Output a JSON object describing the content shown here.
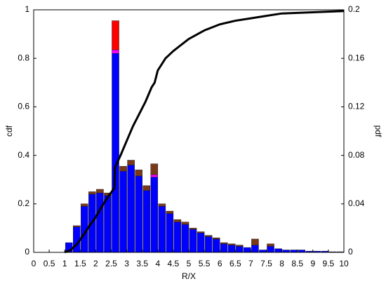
{
  "chart_data": [
    {
      "type": "line",
      "x": [
        1,
        1.2,
        1.4,
        1.6,
        1.8,
        2,
        2.2,
        2.4,
        2.6,
        2.62,
        2.8,
        3,
        3.2,
        3.4,
        3.6,
        3.8,
        3.9,
        4,
        4.25,
        4.5,
        5,
        5.5,
        6,
        6.5,
        7,
        7.5,
        8,
        9,
        10
      ],
      "values": [
        0,
        0.01,
        0.035,
        0.07,
        0.11,
        0.145,
        0.19,
        0.23,
        0.265,
        0.35,
        0.4,
        0.46,
        0.52,
        0.57,
        0.62,
        0.68,
        0.7,
        0.75,
        0.8,
        0.83,
        0.88,
        0.915,
        0.94,
        0.955,
        0.965,
        0.975,
        0.985,
        0.99,
        0.995
      ],
      "color": "#000000",
      "xlabel": "R/X",
      "ylabel": "cdf",
      "xlim": [
        0,
        10
      ],
      "xticks": [
        0,
        0.5,
        1,
        1.5,
        2,
        2.5,
        3,
        3.5,
        4,
        4.5,
        5,
        5.5,
        6,
        6.5,
        7,
        7.5,
        8,
        8.5,
        9,
        9.5,
        10
      ],
      "ylim": [
        0,
        1
      ],
      "yticks": [
        0,
        0.2,
        0.4,
        0.6,
        0.8,
        1
      ]
    },
    {
      "type": "histogram",
      "bins": [
        1,
        1.25,
        1.5,
        1.75,
        2,
        2.25,
        2.5,
        2.75,
        3,
        3.25,
        3.5,
        3.75,
        4,
        4.25,
        4.5,
        4.75,
        5,
        5.25,
        5.5,
        5.75,
        6,
        6.25,
        6.5,
        6.75,
        7,
        7.25,
        7.5,
        7.75,
        8,
        8.25,
        8.5,
        8.75,
        9,
        9.25,
        9.5,
        9.75,
        10
      ],
      "ylabel": "pdf",
      "y2lim": [
        0,
        0.2
      ],
      "y2ticks": [
        0,
        0.04,
        0.08,
        0.12,
        0.16,
        0.2
      ],
      "series": [
        {
          "color": "#0000ff",
          "axis": "y2",
          "values": [
            0.008,
            0.021,
            0.038,
            0.048,
            0.049,
            0.047,
            0.164,
            0.067,
            0.072,
            0.063,
            0.051,
            0.062,
            0.038,
            0.032,
            0.025,
            0.023,
            0.019,
            0.016,
            0.013,
            0.011,
            0.007,
            0.006,
            0.005,
            0.004,
            0.006,
            0.002,
            0.005,
            0.003,
            0.002,
            0.002,
            0.002,
            0.001,
            0.001,
            0.001,
            0.0005,
            0.0005
          ]
        },
        {
          "color": "#ff00ff",
          "axis": "y2",
          "values": [
            0,
            0,
            0,
            0,
            0,
            0,
            0.003,
            0,
            0,
            0,
            0,
            0.002,
            0,
            0,
            0,
            0,
            0,
            0,
            0,
            0,
            0,
            0,
            0,
            0,
            0,
            0,
            0,
            0,
            0,
            0,
            0,
            0,
            0,
            0,
            0,
            0
          ]
        },
        {
          "color": "#7a3a1a",
          "axis": "y2",
          "values": [
            0,
            0.001,
            0.002,
            0.002,
            0.003,
            0.002,
            0,
            0.004,
            0.004,
            0.005,
            0.004,
            0.009,
            0.002,
            0.002,
            0.002,
            0.002,
            0.001,
            0.001,
            0.001,
            0.001,
            0.001,
            0.001,
            0.001,
            0,
            0.005,
            0,
            0.002,
            0,
            0,
            0,
            0,
            0,
            0,
            0,
            0,
            0
          ]
        },
        {
          "color": "#ff0000",
          "axis": "y2",
          "values": [
            0,
            0,
            0,
            0,
            0,
            0,
            0.024,
            0,
            0,
            0,
            0,
            0,
            0,
            0,
            0,
            0,
            0,
            0,
            0,
            0,
            0,
            0,
            0,
            0,
            0,
            0,
            0,
            0,
            0,
            0,
            0,
            0,
            0,
            0,
            0,
            0
          ]
        }
      ]
    }
  ]
}
